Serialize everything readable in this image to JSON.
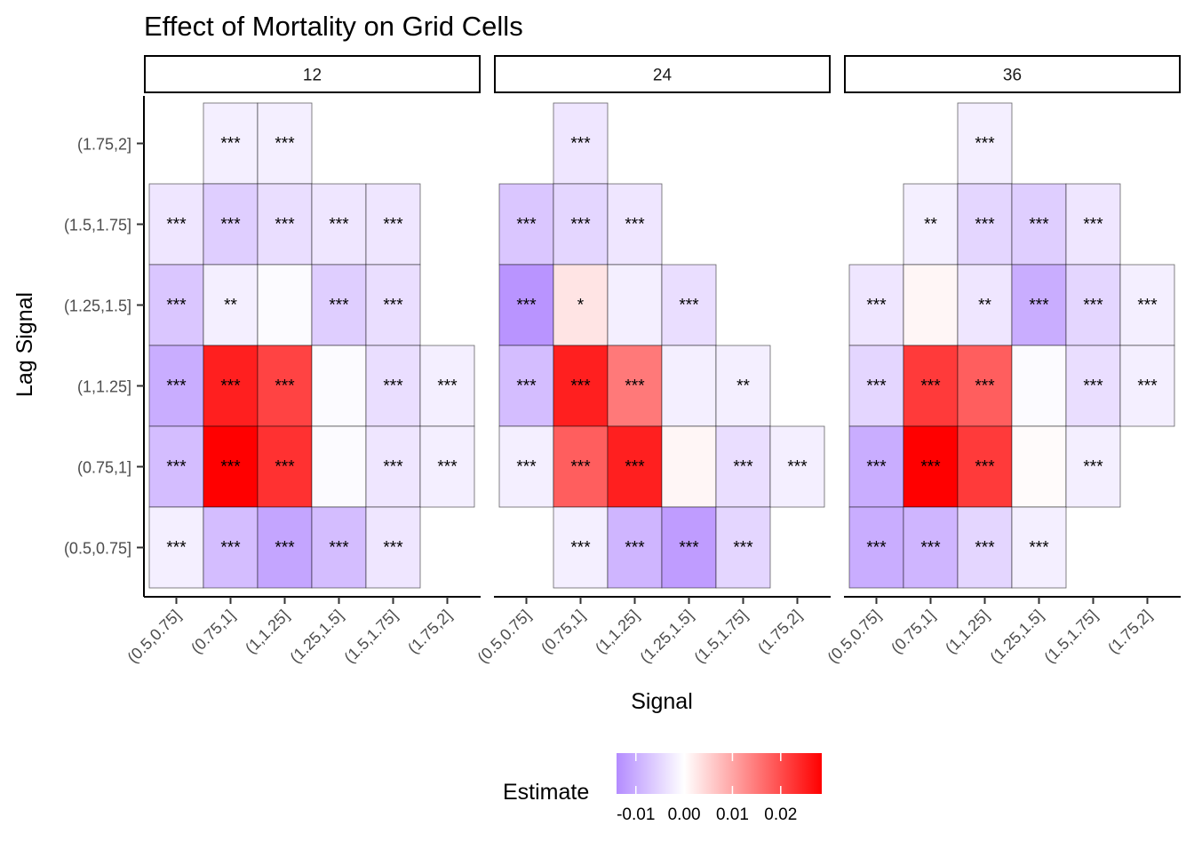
{
  "chart_data": {
    "type": "heatmap",
    "title": "Effect of Mortality on Grid Cells",
    "xlabel": "Signal",
    "ylabel": "Lag Signal",
    "x_categories": [
      "(0.5,0.75]",
      "(0.75,1]",
      "(1,1.25]",
      "(1.25,1.5]",
      "(1.5,1.75]",
      "(1.75,2]"
    ],
    "y_categories": [
      "(0.5,0.75]",
      "(0.75,1]",
      "(1,1.25]",
      "(1.25,1.5]",
      "(1.5,1.75]",
      "(1.75,2]"
    ],
    "legend": {
      "title": "Estimate",
      "placement": "bottom",
      "ticks": [
        -0.01,
        0.0,
        0.01,
        0.02
      ],
      "tick_labels": [
        "-0.01",
        "0.00",
        "0.01",
        "0.02"
      ],
      "range": [
        -0.014,
        0.0285
      ],
      "low_color": "#b48cff",
      "mid_color": "#ffffff",
      "high_color": "#ff0000"
    },
    "panels": [
      {
        "label": "12",
        "cells": [
          {
            "x": "(0.75,1]",
            "y": "(1.75,2]",
            "value": -0.002,
            "sig": "***"
          },
          {
            "x": "(1,1.25]",
            "y": "(1.75,2]",
            "value": -0.002,
            "sig": "***"
          },
          {
            "x": "(0.5,0.75]",
            "y": "(1.5,1.75]",
            "value": -0.003,
            "sig": "***"
          },
          {
            "x": "(0.75,1]",
            "y": "(1.5,1.75]",
            "value": -0.006,
            "sig": "***"
          },
          {
            "x": "(1,1.25]",
            "y": "(1.5,1.75]",
            "value": -0.004,
            "sig": "***"
          },
          {
            "x": "(1.25,1.5]",
            "y": "(1.5,1.75]",
            "value": -0.003,
            "sig": "***"
          },
          {
            "x": "(1.5,1.75]",
            "y": "(1.5,1.75]",
            "value": -0.003,
            "sig": "***"
          },
          {
            "x": "(0.5,0.75]",
            "y": "(1.25,1.5]",
            "value": -0.007,
            "sig": "***"
          },
          {
            "x": "(0.75,1]",
            "y": "(1.25,1.5]",
            "value": -0.002,
            "sig": "**"
          },
          {
            "x": "(1,1.25]",
            "y": "(1.25,1.5]",
            "value": -0.0005,
            "sig": ""
          },
          {
            "x": "(1.25,1.5]",
            "y": "(1.25,1.5]",
            "value": -0.006,
            "sig": "***"
          },
          {
            "x": "(1.5,1.75]",
            "y": "(1.25,1.5]",
            "value": -0.004,
            "sig": "***"
          },
          {
            "x": "(0.5,0.75]",
            "y": "(1,1.25]",
            "value": -0.01,
            "sig": "***"
          },
          {
            "x": "(0.75,1]",
            "y": "(1,1.25]",
            "value": 0.025,
            "sig": "***"
          },
          {
            "x": "(1,1.25]",
            "y": "(1,1.25]",
            "value": 0.021,
            "sig": "***"
          },
          {
            "x": "(1.25,1.5]",
            "y": "(1,1.25]",
            "value": -0.0005,
            "sig": ""
          },
          {
            "x": "(1.5,1.75]",
            "y": "(1,1.25]",
            "value": -0.004,
            "sig": "***"
          },
          {
            "x": "(1.75,2]",
            "y": "(1,1.25]",
            "value": -0.002,
            "sig": "***"
          },
          {
            "x": "(0.5,0.75]",
            "y": "(0.75,1]",
            "value": -0.008,
            "sig": "***"
          },
          {
            "x": "(0.75,1]",
            "y": "(0.75,1]",
            "value": 0.0285,
            "sig": "***"
          },
          {
            "x": "(1,1.25]",
            "y": "(0.75,1]",
            "value": 0.023,
            "sig": "***"
          },
          {
            "x": "(1.25,1.5]",
            "y": "(0.75,1]",
            "value": -0.0005,
            "sig": ""
          },
          {
            "x": "(1.5,1.75]",
            "y": "(0.75,1]",
            "value": -0.003,
            "sig": "***"
          },
          {
            "x": "(1.75,2]",
            "y": "(0.75,1]",
            "value": -0.002,
            "sig": "***"
          },
          {
            "x": "(0.5,0.75]",
            "y": "(0.5,0.75]",
            "value": -0.002,
            "sig": "***"
          },
          {
            "x": "(0.75,1]",
            "y": "(0.5,0.75]",
            "value": -0.008,
            "sig": "***"
          },
          {
            "x": "(1,1.25]",
            "y": "(0.5,0.75]",
            "value": -0.011,
            "sig": "***"
          },
          {
            "x": "(1.25,1.5]",
            "y": "(0.5,0.75]",
            "value": -0.008,
            "sig": "***"
          },
          {
            "x": "(1.5,1.75]",
            "y": "(0.5,0.75]",
            "value": -0.003,
            "sig": "***"
          }
        ]
      },
      {
        "label": "24",
        "cells": [
          {
            "x": "(0.75,1]",
            "y": "(1.75,2]",
            "value": -0.003,
            "sig": "***"
          },
          {
            "x": "(0.5,0.75]",
            "y": "(1.5,1.75]",
            "value": -0.007,
            "sig": "***"
          },
          {
            "x": "(0.75,1]",
            "y": "(1.5,1.75]",
            "value": -0.005,
            "sig": "***"
          },
          {
            "x": "(1,1.25]",
            "y": "(1.5,1.75]",
            "value": -0.003,
            "sig": "***"
          },
          {
            "x": "(0.5,0.75]",
            "y": "(1.25,1.5]",
            "value": -0.013,
            "sig": "***"
          },
          {
            "x": "(0.75,1]",
            "y": "(1.25,1.5]",
            "value": 0.003,
            "sig": "*"
          },
          {
            "x": "(1,1.25]",
            "y": "(1.25,1.5]",
            "value": -0.002,
            "sig": ""
          },
          {
            "x": "(1.25,1.5]",
            "y": "(1.25,1.5]",
            "value": -0.004,
            "sig": "***"
          },
          {
            "x": "(0.5,0.75]",
            "y": "(1,1.25]",
            "value": -0.008,
            "sig": "***"
          },
          {
            "x": "(0.75,1]",
            "y": "(1,1.25]",
            "value": 0.025,
            "sig": "***"
          },
          {
            "x": "(1,1.25]",
            "y": "(1,1.25]",
            "value": 0.015,
            "sig": "***"
          },
          {
            "x": "(1.25,1.5]",
            "y": "(1,1.25]",
            "value": -0.002,
            "sig": ""
          },
          {
            "x": "(1.5,1.75]",
            "y": "(1,1.25]",
            "value": -0.002,
            "sig": "**"
          },
          {
            "x": "(0.5,0.75]",
            "y": "(0.75,1]",
            "value": -0.002,
            "sig": "***"
          },
          {
            "x": "(0.75,1]",
            "y": "(0.75,1]",
            "value": 0.018,
            "sig": "***"
          },
          {
            "x": "(1,1.25]",
            "y": "(0.75,1]",
            "value": 0.025,
            "sig": "***"
          },
          {
            "x": "(1.25,1.5]",
            "y": "(0.75,1]",
            "value": 0.001,
            "sig": ""
          },
          {
            "x": "(1.5,1.75]",
            "y": "(0.75,1]",
            "value": -0.004,
            "sig": "***"
          },
          {
            "x": "(1.75,2]",
            "y": "(0.75,1]",
            "value": -0.002,
            "sig": "***"
          },
          {
            "x": "(0.75,1]",
            "y": "(0.5,0.75]",
            "value": -0.002,
            "sig": "***"
          },
          {
            "x": "(1,1.25]",
            "y": "(0.5,0.75]",
            "value": -0.009,
            "sig": "***"
          },
          {
            "x": "(1.25,1.5]",
            "y": "(0.5,0.75]",
            "value": -0.012,
            "sig": "***"
          },
          {
            "x": "(1.5,1.75]",
            "y": "(0.5,0.75]",
            "value": -0.005,
            "sig": "***"
          }
        ]
      },
      {
        "label": "36",
        "cells": [
          {
            "x": "(1,1.25]",
            "y": "(1.75,2]",
            "value": -0.002,
            "sig": "***"
          },
          {
            "x": "(0.75,1]",
            "y": "(1.5,1.75]",
            "value": -0.002,
            "sig": "**"
          },
          {
            "x": "(1,1.25]",
            "y": "(1.5,1.75]",
            "value": -0.005,
            "sig": "***"
          },
          {
            "x": "(1.25,1.5]",
            "y": "(1.5,1.75]",
            "value": -0.006,
            "sig": "***"
          },
          {
            "x": "(1.5,1.75]",
            "y": "(1.5,1.75]",
            "value": -0.003,
            "sig": "***"
          },
          {
            "x": "(0.5,0.75]",
            "y": "(1.25,1.5]",
            "value": -0.003,
            "sig": "***"
          },
          {
            "x": "(0.75,1]",
            "y": "(1.25,1.5]",
            "value": 0.001,
            "sig": ""
          },
          {
            "x": "(1,1.25]",
            "y": "(1.25,1.5]",
            "value": -0.003,
            "sig": "**"
          },
          {
            "x": "(1.25,1.5]",
            "y": "(1.25,1.5]",
            "value": -0.01,
            "sig": "***"
          },
          {
            "x": "(1.5,1.75]",
            "y": "(1.25,1.5]",
            "value": -0.005,
            "sig": "***"
          },
          {
            "x": "(1.75,2]",
            "y": "(1.25,1.5]",
            "value": -0.002,
            "sig": "***"
          },
          {
            "x": "(0.5,0.75]",
            "y": "(1,1.25]",
            "value": -0.005,
            "sig": "***"
          },
          {
            "x": "(0.75,1]",
            "y": "(1,1.25]",
            "value": 0.022,
            "sig": "***"
          },
          {
            "x": "(1,1.25]",
            "y": "(1,1.25]",
            "value": 0.018,
            "sig": "***"
          },
          {
            "x": "(1.25,1.5]",
            "y": "(1,1.25]",
            "value": -0.0005,
            "sig": ""
          },
          {
            "x": "(1.5,1.75]",
            "y": "(1,1.25]",
            "value": -0.004,
            "sig": "***"
          },
          {
            "x": "(1.75,2]",
            "y": "(1,1.25]",
            "value": -0.002,
            "sig": "***"
          },
          {
            "x": "(0.5,0.75]",
            "y": "(0.75,1]",
            "value": -0.01,
            "sig": "***"
          },
          {
            "x": "(0.75,1]",
            "y": "(0.75,1]",
            "value": 0.0285,
            "sig": "***"
          },
          {
            "x": "(1,1.25]",
            "y": "(0.75,1]",
            "value": 0.022,
            "sig": "***"
          },
          {
            "x": "(1.25,1.5]",
            "y": "(0.75,1]",
            "value": 0.0005,
            "sig": ""
          },
          {
            "x": "(1.5,1.75]",
            "y": "(0.75,1]",
            "value": -0.002,
            "sig": "***"
          },
          {
            "x": "(0.5,0.75]",
            "y": "(0.5,0.75]",
            "value": -0.01,
            "sig": "***"
          },
          {
            "x": "(0.75,1]",
            "y": "(0.5,0.75]",
            "value": -0.009,
            "sig": "***"
          },
          {
            "x": "(1,1.25]",
            "y": "(0.5,0.75]",
            "value": -0.005,
            "sig": "***"
          },
          {
            "x": "(1.25,1.5]",
            "y": "(0.5,0.75]",
            "value": -0.002,
            "sig": "***"
          }
        ]
      }
    ]
  }
}
